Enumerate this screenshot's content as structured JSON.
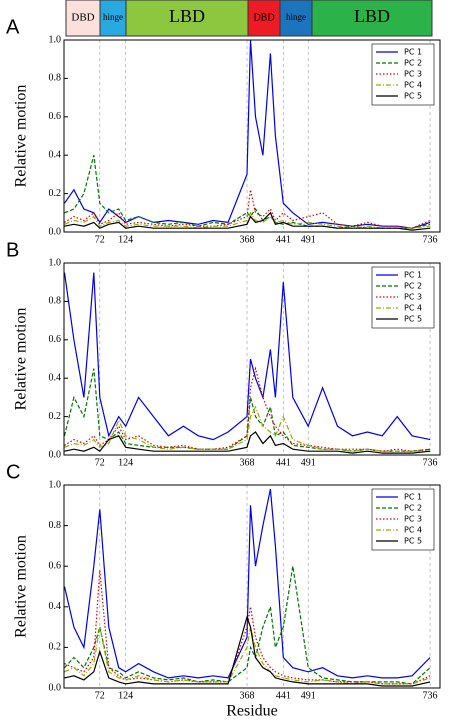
{
  "domain_bar": {
    "segments": [
      "DBD",
      "hinge",
      "LBD",
      "DBD",
      "hinge",
      "LBD"
    ]
  },
  "chart_data": [
    {
      "type": "line",
      "panel": "A",
      "ylabel": "Relative motion",
      "x": [
        1,
        20,
        40,
        60,
        72,
        90,
        110,
        124,
        150,
        180,
        210,
        240,
        270,
        300,
        330,
        368,
        375,
        385,
        400,
        415,
        425,
        441,
        460,
        491,
        520,
        550,
        580,
        610,
        640,
        670,
        700,
        736
      ],
      "xlim": [
        0,
        756
      ],
      "ylim": [
        0,
        1
      ],
      "xticks": [
        72,
        124,
        368,
        441,
        491,
        736
      ],
      "yticks": [
        {
          "value": 0,
          "label": "0.0"
        },
        {
          "value": 0.2,
          "label": "0.2"
        },
        {
          "value": 0.4,
          "label": "0.4"
        },
        {
          "value": 0.6,
          "label": "0.6"
        },
        {
          "value": 0.8,
          "label": "0.8"
        },
        {
          "value": 1,
          "label": "1.0"
        }
      ],
      "grid": true,
      "legend": "upper right",
      "series": [
        {
          "name": "PC 1",
          "color": "#0000ee",
          "style": "solid",
          "values": [
            0.15,
            0.22,
            0.12,
            0.1,
            0.05,
            0.12,
            0.08,
            0.05,
            0.08,
            0.05,
            0.06,
            0.05,
            0.04,
            0.06,
            0.05,
            0.3,
            1.0,
            0.6,
            0.4,
            0.93,
            0.5,
            0.15,
            0.1,
            0.04,
            0.05,
            0.04,
            0.03,
            0.04,
            0.03,
            0.03,
            0.02,
            0.05
          ]
        },
        {
          "name": "PC 2",
          "color": "#007700",
          "style": "dashed",
          "values": [
            0.1,
            0.12,
            0.2,
            0.4,
            0.15,
            0.1,
            0.12,
            0.06,
            0.08,
            0.05,
            0.04,
            0.05,
            0.03,
            0.05,
            0.04,
            0.1,
            0.08,
            0.12,
            0.06,
            0.08,
            0.05,
            0.04,
            0.05,
            0.03,
            0.03,
            0.02,
            0.03,
            0.02,
            0.02,
            0.02,
            0.02,
            0.04
          ]
        },
        {
          "name": "PC 3",
          "color": "#dd0000",
          "style": "dotted",
          "values": [
            0.05,
            0.08,
            0.06,
            0.1,
            0.04,
            0.06,
            0.1,
            0.04,
            0.05,
            0.04,
            0.03,
            0.04,
            0.03,
            0.03,
            0.04,
            0.08,
            0.22,
            0.1,
            0.08,
            0.12,
            0.06,
            0.1,
            0.06,
            0.08,
            0.1,
            0.04,
            0.03,
            0.05,
            0.03,
            0.03,
            0.02,
            0.06
          ]
        },
        {
          "name": "PC 4",
          "color": "#99aa00",
          "style": "dashdot",
          "values": [
            0.04,
            0.06,
            0.05,
            0.08,
            0.03,
            0.05,
            0.06,
            0.03,
            0.04,
            0.03,
            0.03,
            0.03,
            0.02,
            0.03,
            0.03,
            0.06,
            0.1,
            0.06,
            0.05,
            0.08,
            0.05,
            0.06,
            0.04,
            0.05,
            0.04,
            0.03,
            0.02,
            0.03,
            0.02,
            0.02,
            0.02,
            0.03
          ]
        },
        {
          "name": "PC 5",
          "color": "#000000",
          "style": "solid",
          "values": [
            0.03,
            0.04,
            0.03,
            0.05,
            0.02,
            0.04,
            0.05,
            0.02,
            0.03,
            0.02,
            0.02,
            0.02,
            0.02,
            0.02,
            0.02,
            0.04,
            0.08,
            0.05,
            0.06,
            0.1,
            0.04,
            0.05,
            0.03,
            0.03,
            0.03,
            0.02,
            0.02,
            0.02,
            0.02,
            0.02,
            0.01,
            0.02
          ]
        }
      ]
    },
    {
      "type": "line",
      "panel": "B",
      "ylabel": "Relative motion",
      "x": [
        1,
        20,
        40,
        60,
        72,
        90,
        110,
        124,
        150,
        180,
        210,
        240,
        270,
        300,
        330,
        368,
        375,
        385,
        400,
        415,
        425,
        441,
        460,
        491,
        520,
        550,
        580,
        610,
        640,
        670,
        700,
        736
      ],
      "xlim": [
        0,
        756
      ],
      "ylim": [
        0,
        1
      ],
      "xticks": [
        72,
        124,
        368,
        441,
        491,
        736
      ],
      "yticks": [
        {
          "value": 0,
          "label": "0.0"
        },
        {
          "value": 0.2,
          "label": "0.2"
        },
        {
          "value": 0.4,
          "label": "0.4"
        },
        {
          "value": 0.6,
          "label": "0.6"
        },
        {
          "value": 0.8,
          "label": "0.8"
        },
        {
          "value": 1,
          "label": "1.0"
        }
      ],
      "grid": true,
      "legend": "upper right",
      "series": [
        {
          "name": "PC 1",
          "color": "#0000ee",
          "style": "solid",
          "values": [
            0.95,
            0.6,
            0.3,
            0.95,
            0.3,
            0.1,
            0.2,
            0.15,
            0.3,
            0.2,
            0.1,
            0.15,
            0.1,
            0.08,
            0.12,
            0.2,
            0.5,
            0.4,
            0.3,
            0.55,
            0.3,
            0.9,
            0.3,
            0.15,
            0.35,
            0.15,
            0.1,
            0.12,
            0.1,
            0.2,
            0.1,
            0.08
          ]
        },
        {
          "name": "PC 2",
          "color": "#007700",
          "style": "dashed",
          "values": [
            0.1,
            0.3,
            0.2,
            0.45,
            0.1,
            0.08,
            0.12,
            0.06,
            0.05,
            0.04,
            0.04,
            0.04,
            0.03,
            0.03,
            0.03,
            0.1,
            0.3,
            0.2,
            0.15,
            0.25,
            0.1,
            0.12,
            0.05,
            0.04,
            0.03,
            0.03,
            0.02,
            0.03,
            0.02,
            0.02,
            0.02,
            0.03
          ]
        },
        {
          "name": "PC 3",
          "color": "#dd0000",
          "style": "dotted",
          "values": [
            0.05,
            0.08,
            0.06,
            0.1,
            0.05,
            0.08,
            0.15,
            0.08,
            0.1,
            0.05,
            0.04,
            0.05,
            0.03,
            0.03,
            0.04,
            0.1,
            0.35,
            0.45,
            0.3,
            0.2,
            0.15,
            0.1,
            0.06,
            0.05,
            0.04,
            0.03,
            0.03,
            0.03,
            0.02,
            0.03,
            0.02,
            0.03
          ]
        },
        {
          "name": "PC 4",
          "color": "#99aa00",
          "style": "dashdot",
          "values": [
            0.04,
            0.06,
            0.05,
            0.08,
            0.04,
            0.06,
            0.18,
            0.1,
            0.08,
            0.04,
            0.03,
            0.04,
            0.03,
            0.03,
            0.03,
            0.08,
            0.2,
            0.25,
            0.15,
            0.12,
            0.1,
            0.2,
            0.08,
            0.05,
            0.03,
            0.03,
            0.02,
            0.03,
            0.02,
            0.02,
            0.02,
            0.02
          ]
        },
        {
          "name": "PC 5",
          "color": "#000000",
          "style": "solid",
          "values": [
            0.02,
            0.03,
            0.02,
            0.04,
            0.02,
            0.08,
            0.1,
            0.04,
            0.03,
            0.02,
            0.02,
            0.02,
            0.02,
            0.02,
            0.02,
            0.04,
            0.1,
            0.12,
            0.06,
            0.1,
            0.05,
            0.06,
            0.03,
            0.02,
            0.02,
            0.02,
            0.01,
            0.02,
            0.01,
            0.01,
            0.01,
            0.02
          ]
        }
      ]
    },
    {
      "type": "line",
      "panel": "C",
      "ylabel": "Relative motion",
      "xlabel": "Residue",
      "x": [
        1,
        20,
        40,
        60,
        72,
        90,
        110,
        124,
        150,
        180,
        210,
        240,
        270,
        300,
        330,
        368,
        375,
        385,
        400,
        415,
        425,
        441,
        460,
        491,
        520,
        550,
        580,
        610,
        640,
        670,
        700,
        736
      ],
      "xlim": [
        0,
        756
      ],
      "ylim": [
        0,
        1
      ],
      "xticks": [
        72,
        124,
        368,
        441,
        491,
        736
      ],
      "yticks": [
        {
          "value": 0,
          "label": "0.0"
        },
        {
          "value": 0.2,
          "label": "0.2"
        },
        {
          "value": 0.4,
          "label": "0.4"
        },
        {
          "value": 0.6,
          "label": "0.6"
        },
        {
          "value": 0.8,
          "label": "0.8"
        },
        {
          "value": 1,
          "label": "1.0"
        }
      ],
      "grid": true,
      "legend": "upper right",
      "series": [
        {
          "name": "PC 1",
          "color": "#0000ee",
          "style": "solid",
          "values": [
            0.5,
            0.3,
            0.2,
            0.6,
            0.88,
            0.3,
            0.1,
            0.08,
            0.12,
            0.08,
            0.05,
            0.06,
            0.05,
            0.06,
            0.05,
            0.25,
            0.9,
            0.6,
            0.8,
            0.98,
            0.7,
            0.15,
            0.1,
            0.08,
            0.1,
            0.06,
            0.05,
            0.06,
            0.05,
            0.05,
            0.06,
            0.15
          ]
        },
        {
          "name": "PC 2",
          "color": "#007700",
          "style": "dashed",
          "values": [
            0.1,
            0.15,
            0.1,
            0.2,
            0.3,
            0.1,
            0.08,
            0.05,
            0.08,
            0.05,
            0.04,
            0.05,
            0.03,
            0.04,
            0.03,
            0.1,
            0.2,
            0.15,
            0.3,
            0.4,
            0.2,
            0.3,
            0.6,
            0.1,
            0.05,
            0.04,
            0.03,
            0.03,
            0.03,
            0.03,
            0.02,
            0.1
          ]
        },
        {
          "name": "PC 3",
          "color": "#dd0000",
          "style": "dotted",
          "values": [
            0.12,
            0.1,
            0.08,
            0.15,
            0.58,
            0.1,
            0.06,
            0.04,
            0.05,
            0.04,
            0.03,
            0.04,
            0.03,
            0.03,
            0.03,
            0.3,
            0.4,
            0.25,
            0.15,
            0.1,
            0.08,
            0.06,
            0.05,
            0.04,
            0.04,
            0.03,
            0.03,
            0.03,
            0.02,
            0.02,
            0.02,
            0.06
          ]
        },
        {
          "name": "PC 4",
          "color": "#99aa00",
          "style": "dashdot",
          "values": [
            0.08,
            0.1,
            0.06,
            0.12,
            0.3,
            0.08,
            0.05,
            0.04,
            0.06,
            0.04,
            0.03,
            0.04,
            0.03,
            0.03,
            0.03,
            0.2,
            0.3,
            0.2,
            0.12,
            0.08,
            0.06,
            0.05,
            0.04,
            0.03,
            0.04,
            0.03,
            0.02,
            0.03,
            0.02,
            0.02,
            0.02,
            0.05
          ]
        },
        {
          "name": "PC 5",
          "color": "#000000",
          "style": "solid",
          "values": [
            0.05,
            0.06,
            0.04,
            0.08,
            0.18,
            0.05,
            0.03,
            0.02,
            0.03,
            0.02,
            0.02,
            0.02,
            0.02,
            0.02,
            0.02,
            0.35,
            0.3,
            0.15,
            0.1,
            0.08,
            0.05,
            0.04,
            0.03,
            0.02,
            0.02,
            0.02,
            0.02,
            0.02,
            0.01,
            0.01,
            0.01,
            0.03
          ]
        }
      ]
    }
  ]
}
